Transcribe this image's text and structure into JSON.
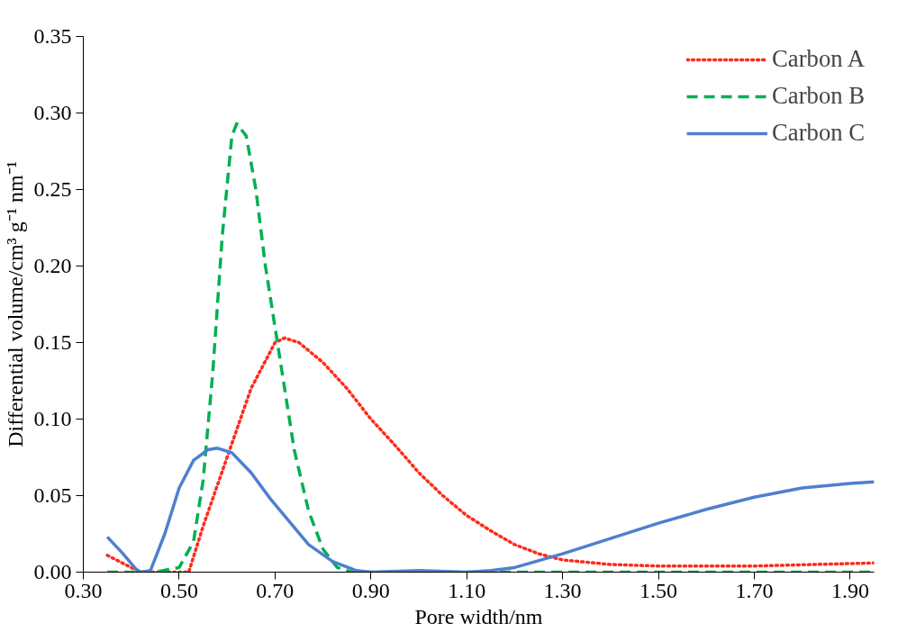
{
  "chart_data": {
    "type": "line",
    "xlabel": "Pore width/nm",
    "ylabel": "Differential volume/cm³ g⁻¹ nm⁻¹",
    "xlim": [
      0.3,
      1.95
    ],
    "xticks": [
      {
        "value": 0.3,
        "label": "0.30"
      },
      {
        "value": 0.5,
        "label": "0.50"
      },
      {
        "value": 0.7,
        "label": "0.70"
      },
      {
        "value": 0.9,
        "label": "0.90"
      },
      {
        "value": 1.1,
        "label": "1.10"
      },
      {
        "value": 1.3,
        "label": "1.30"
      },
      {
        "value": 1.5,
        "label": "1.50"
      },
      {
        "value": 1.7,
        "label": "1.70"
      },
      {
        "value": 1.9,
        "label": "1.90"
      }
    ],
    "ylim": [
      0,
      0.35
    ],
    "yticks": [
      {
        "value": 0,
        "label": "0.00"
      },
      {
        "value": 0.05,
        "label": "0.05"
      },
      {
        "value": 0.1,
        "label": "0.10"
      },
      {
        "value": 0.15,
        "label": "0.15"
      },
      {
        "value": 0.2,
        "label": "0.20"
      },
      {
        "value": 0.25,
        "label": "0.25"
      },
      {
        "value": 0.3,
        "label": "0.30"
      },
      {
        "value": 0.35,
        "label": "0.35"
      }
    ],
    "grid": false,
    "legend": "top right",
    "series": [
      {
        "name": "Carbon A",
        "color": "#ff2a1a",
        "line_style": "dotted",
        "x": [
          0.35,
          0.4,
          0.42,
          0.45,
          0.5,
          0.52,
          0.55,
          0.6,
          0.65,
          0.7,
          0.72,
          0.75,
          0.8,
          0.85,
          0.9,
          0.95,
          1.0,
          1.05,
          1.1,
          1.15,
          1.2,
          1.25,
          1.3,
          1.4,
          1.5,
          1.7,
          1.95
        ],
        "values": [
          0.011,
          0.003,
          0.0,
          0.0,
          0.0,
          0.0,
          0.03,
          0.075,
          0.12,
          0.15,
          0.153,
          0.15,
          0.137,
          0.12,
          0.1,
          0.083,
          0.065,
          0.05,
          0.037,
          0.027,
          0.018,
          0.012,
          0.008,
          0.005,
          0.004,
          0.004,
          0.006
        ]
      },
      {
        "name": "Carbon B",
        "color": "#00b050",
        "line_style": "dashed",
        "x": [
          0.35,
          0.45,
          0.5,
          0.53,
          0.55,
          0.57,
          0.59,
          0.61,
          0.62,
          0.64,
          0.66,
          0.68,
          0.7,
          0.72,
          0.74,
          0.77,
          0.8,
          0.83,
          0.86,
          1.95
        ],
        "values": [
          0.0,
          0.0,
          0.003,
          0.02,
          0.06,
          0.13,
          0.22,
          0.285,
          0.293,
          0.285,
          0.25,
          0.2,
          0.16,
          0.12,
          0.08,
          0.04,
          0.015,
          0.003,
          0.0,
          0.0
        ]
      },
      {
        "name": "Carbon C",
        "color": "#4f7fcf",
        "line_style": "solid",
        "x": [
          0.35,
          0.38,
          0.41,
          0.42,
          0.44,
          0.47,
          0.5,
          0.53,
          0.56,
          0.58,
          0.61,
          0.65,
          0.69,
          0.73,
          0.77,
          0.82,
          0.87,
          0.9,
          1.0,
          1.1,
          1.15,
          1.2,
          1.3,
          1.4,
          1.5,
          1.6,
          1.7,
          1.8,
          1.9,
          1.95
        ],
        "values": [
          0.023,
          0.013,
          0.002,
          0.0,
          0.001,
          0.025,
          0.055,
          0.073,
          0.08,
          0.081,
          0.078,
          0.065,
          0.048,
          0.033,
          0.018,
          0.007,
          0.001,
          0.0,
          0.001,
          0.0,
          0.001,
          0.003,
          0.012,
          0.022,
          0.032,
          0.041,
          0.049,
          0.055,
          0.058,
          0.059
        ]
      }
    ]
  }
}
